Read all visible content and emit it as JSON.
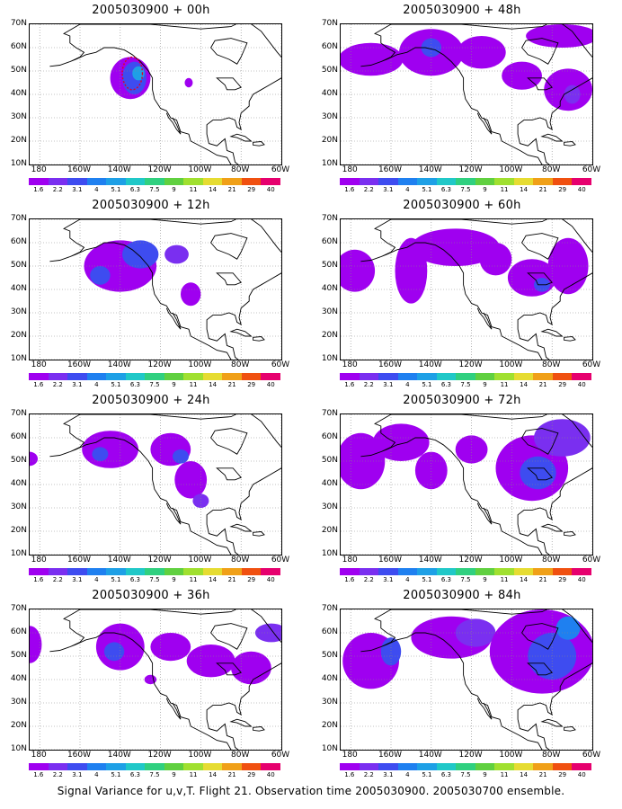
{
  "caption": "Signal Variance for u,v,T. Flight 21. Observation time 2005030900. 2005030700 ensemble.",
  "axes": {
    "lat_labels": [
      "70N",
      "60N",
      "50N",
      "40N",
      "30N",
      "20N",
      "10N"
    ],
    "lat_values": [
      70,
      60,
      50,
      40,
      30,
      20,
      10
    ],
    "lon_labels": [
      "180",
      "160W",
      "140W",
      "120W",
      "100W",
      "80W",
      "60W"
    ],
    "lon_values": [
      -180,
      -160,
      -140,
      -120,
      -100,
      -80,
      -60
    ],
    "lon_range": [
      -185,
      -60
    ],
    "lat_range": [
      10,
      70
    ],
    "grid": "dotted"
  },
  "colorbar": {
    "levels": [
      "1.6",
      "2.2",
      "3.1",
      "4",
      "5.1",
      "6.3",
      "7.5",
      "9",
      "11",
      "14",
      "21",
      "29",
      "40"
    ],
    "colors": [
      "#9f00f0",
      "#7a2ff0",
      "#3e4cf0",
      "#1f80f0",
      "#1ea0e6",
      "#20c8c8",
      "#30d080",
      "#60d040",
      "#a0e030",
      "#e6dc32",
      "#f0a018",
      "#f05010",
      "#e6006e"
    ]
  },
  "panels": [
    {
      "id": "p00",
      "title": "2005030900 + 00h",
      "column": "left",
      "row": 0,
      "blobs": [
        {
          "lon": -135,
          "lat": 47,
          "rlon": 10,
          "rlat": 9,
          "level": 0
        },
        {
          "lon": -133,
          "lat": 47,
          "rlon": 6,
          "rlat": 7,
          "level": 2
        },
        {
          "lon": -131,
          "lat": 49,
          "rlon": 3,
          "rlat": 3,
          "level": 4
        },
        {
          "lon": -106,
          "lat": 45,
          "rlon": 2,
          "rlat": 2,
          "level": 0
        }
      ],
      "observations": {
        "marker": "dashed-red-circles",
        "lon": -134,
        "lat": 49,
        "rlon": 5,
        "rlat": 7
      }
    },
    {
      "id": "p48",
      "title": "2005030900 + 48h",
      "column": "right",
      "row": 0,
      "blobs": [
        {
          "lon": -170,
          "lat": 55,
          "rlon": 16,
          "rlat": 7,
          "level": 0
        },
        {
          "lon": -140,
          "lat": 58,
          "rlon": 16,
          "rlat": 10,
          "level": 0
        },
        {
          "lon": -140,
          "lat": 60,
          "rlon": 5,
          "rlat": 4,
          "level": 2
        },
        {
          "lon": -115,
          "lat": 58,
          "rlon": 12,
          "rlat": 7,
          "level": 0
        },
        {
          "lon": -95,
          "lat": 48,
          "rlon": 10,
          "rlat": 6,
          "level": 0
        },
        {
          "lon": -72,
          "lat": 42,
          "rlon": 12,
          "rlat": 9,
          "level": 0
        },
        {
          "lon": -75,
          "lat": 65,
          "rlon": 18,
          "rlat": 5,
          "level": 0
        },
        {
          "lon": -70,
          "lat": 40,
          "rlon": 4,
          "rlat": 4,
          "level": 1
        }
      ]
    },
    {
      "id": "p12",
      "title": "2005030900 + 12h",
      "column": "left",
      "row": 1,
      "blobs": [
        {
          "lon": -140,
          "lat": 50,
          "rlon": 18,
          "rlat": 11,
          "level": 0
        },
        {
          "lon": -130,
          "lat": 55,
          "rlon": 9,
          "rlat": 6,
          "level": 2
        },
        {
          "lon": -150,
          "lat": 46,
          "rlon": 5,
          "rlat": 4,
          "level": 2
        },
        {
          "lon": -112,
          "lat": 55,
          "rlon": 6,
          "rlat": 4,
          "level": 1
        },
        {
          "lon": -105,
          "lat": 38,
          "rlon": 5,
          "rlat": 5,
          "level": 0
        }
      ]
    },
    {
      "id": "p60",
      "title": "2005030900 + 60h",
      "column": "right",
      "row": 1,
      "blobs": [
        {
          "lon": -178,
          "lat": 48,
          "rlon": 10,
          "rlat": 9,
          "level": 0
        },
        {
          "lon": -150,
          "lat": 48,
          "rlon": 8,
          "rlat": 14,
          "level": 0
        },
        {
          "lon": -128,
          "lat": 58,
          "rlon": 22,
          "rlat": 8,
          "level": 0
        },
        {
          "lon": -108,
          "lat": 53,
          "rlon": 8,
          "rlat": 7,
          "level": 0
        },
        {
          "lon": -90,
          "lat": 45,
          "rlon": 12,
          "rlat": 8,
          "level": 0
        },
        {
          "lon": -85,
          "lat": 42,
          "rlon": 4,
          "rlat": 3,
          "level": 2
        },
        {
          "lon": -72,
          "lat": 50,
          "rlon": 10,
          "rlat": 12,
          "level": 0
        }
      ]
    },
    {
      "id": "p24",
      "title": "2005030900 + 24h",
      "column": "left",
      "row": 2,
      "blobs": [
        {
          "lon": -185,
          "lat": 51,
          "rlon": 4,
          "rlat": 3,
          "level": 0
        },
        {
          "lon": -145,
          "lat": 55,
          "rlon": 14,
          "rlat": 8,
          "level": 0
        },
        {
          "lon": -150,
          "lat": 53,
          "rlon": 4,
          "rlat": 3,
          "level": 2
        },
        {
          "lon": -115,
          "lat": 55,
          "rlon": 10,
          "rlat": 7,
          "level": 0
        },
        {
          "lon": -110,
          "lat": 52,
          "rlon": 4,
          "rlat": 3,
          "level": 2
        },
        {
          "lon": -105,
          "lat": 42,
          "rlon": 8,
          "rlat": 8,
          "level": 0
        },
        {
          "lon": -100,
          "lat": 33,
          "rlon": 4,
          "rlat": 3,
          "level": 1
        }
      ]
    },
    {
      "id": "p72",
      "title": "2005030900 + 72h",
      "column": "right",
      "row": 2,
      "blobs": [
        {
          "lon": -175,
          "lat": 50,
          "rlon": 12,
          "rlat": 12,
          "level": 0
        },
        {
          "lon": -155,
          "lat": 58,
          "rlon": 14,
          "rlat": 8,
          "level": 0
        },
        {
          "lon": -140,
          "lat": 46,
          "rlon": 8,
          "rlat": 8,
          "level": 0
        },
        {
          "lon": -120,
          "lat": 55,
          "rlon": 8,
          "rlat": 6,
          "level": 0
        },
        {
          "lon": -90,
          "lat": 47,
          "rlon": 18,
          "rlat": 14,
          "level": 0
        },
        {
          "lon": -87,
          "lat": 45,
          "rlon": 9,
          "rlat": 7,
          "level": 2
        },
        {
          "lon": -75,
          "lat": 60,
          "rlon": 14,
          "rlat": 8,
          "level": 1
        }
      ]
    },
    {
      "id": "p36",
      "title": "2005030900 + 36h",
      "column": "left",
      "row": 3,
      "blobs": [
        {
          "lon": -185,
          "lat": 55,
          "rlon": 6,
          "rlat": 8,
          "level": 0
        },
        {
          "lon": -140,
          "lat": 54,
          "rlon": 12,
          "rlat": 10,
          "level": 0
        },
        {
          "lon": -143,
          "lat": 52,
          "rlon": 5,
          "rlat": 4,
          "level": 2
        },
        {
          "lon": -115,
          "lat": 54,
          "rlon": 10,
          "rlat": 6,
          "level": 0
        },
        {
          "lon": -95,
          "lat": 48,
          "rlon": 12,
          "rlat": 7,
          "level": 0
        },
        {
          "lon": -75,
          "lat": 45,
          "rlon": 10,
          "rlat": 7,
          "level": 0
        },
        {
          "lon": -65,
          "lat": 60,
          "rlon": 8,
          "rlat": 4,
          "level": 1
        },
        {
          "lon": -125,
          "lat": 40,
          "rlon": 3,
          "rlat": 2,
          "level": 0
        }
      ]
    },
    {
      "id": "p84",
      "title": "2005030900 + 84h",
      "column": "right",
      "row": 3,
      "blobs": [
        {
          "lon": -170,
          "lat": 48,
          "rlon": 14,
          "rlat": 12,
          "level": 0
        },
        {
          "lon": -160,
          "lat": 52,
          "rlon": 5,
          "rlat": 6,
          "level": 2
        },
        {
          "lon": -130,
          "lat": 58,
          "rlon": 20,
          "rlat": 9,
          "level": 0
        },
        {
          "lon": -118,
          "lat": 60,
          "rlon": 10,
          "rlat": 6,
          "level": 1
        },
        {
          "lon": -85,
          "lat": 52,
          "rlon": 26,
          "rlat": 18,
          "level": 0
        },
        {
          "lon": -80,
          "lat": 50,
          "rlon": 12,
          "rlat": 10,
          "level": 2
        },
        {
          "lon": -72,
          "lat": 62,
          "rlon": 6,
          "rlat": 5,
          "level": 3
        }
      ]
    }
  ]
}
